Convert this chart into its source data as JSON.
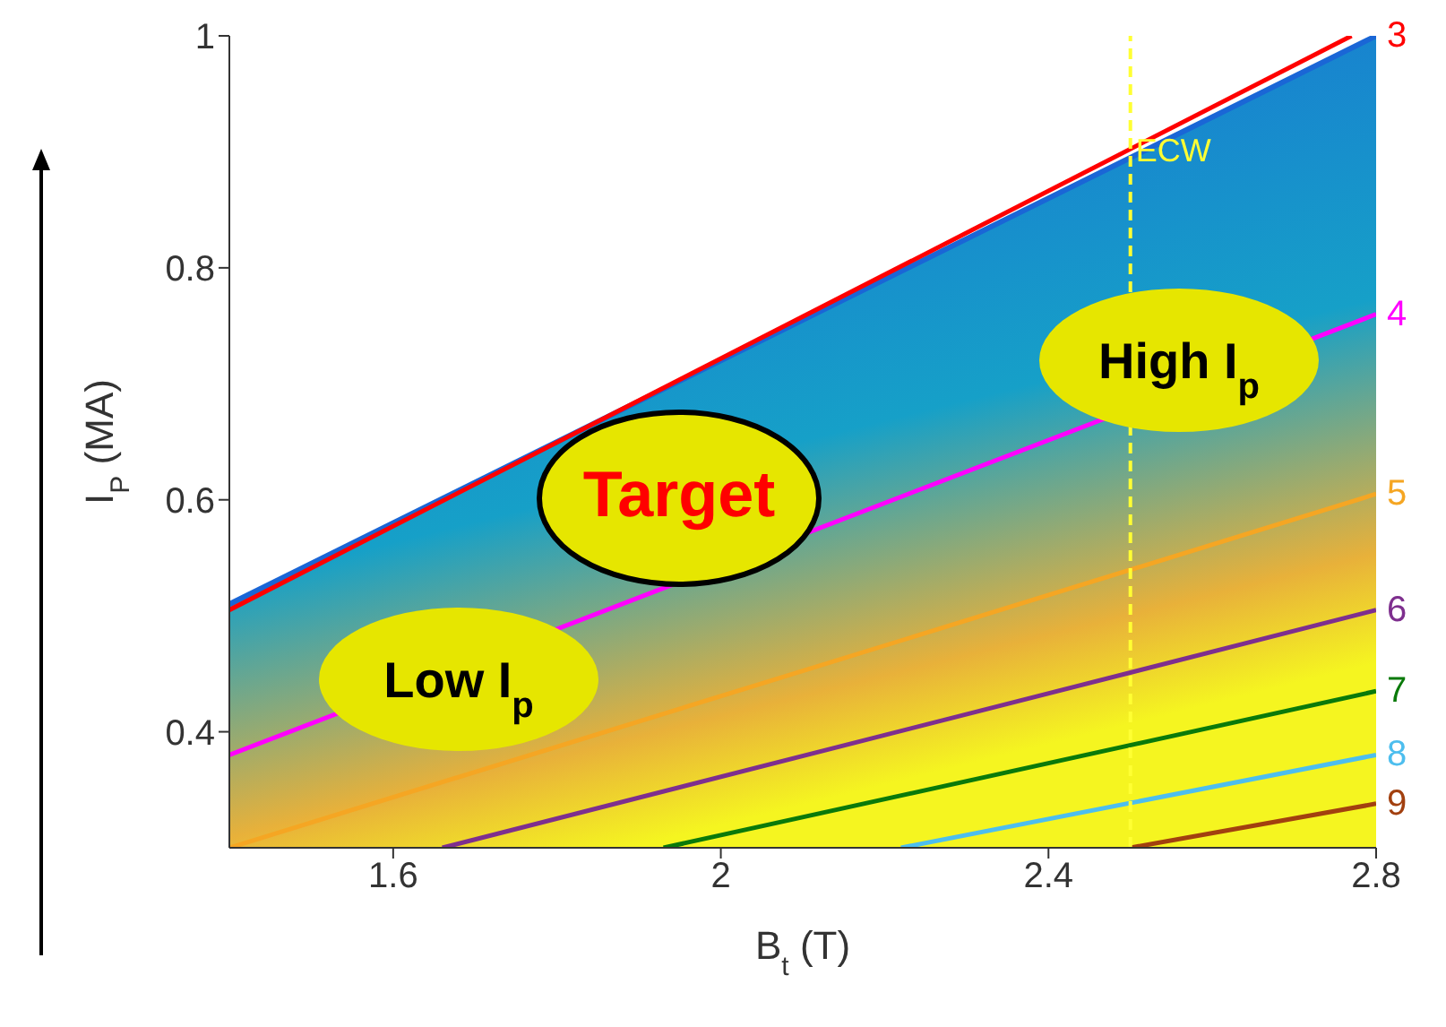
{
  "chart_data": {
    "type": "line",
    "xlabel": "B$_{t}$ (T)",
    "ylabel": "I$_{P}$ (MA)",
    "xlim": [
      1.4,
      2.8
    ],
    "xticks": [
      1.6,
      2,
      2.4,
      2.8
    ],
    "ylim": [
      0.3,
      1
    ],
    "yticks": [
      0.4,
      0.6,
      0.8,
      1
    ],
    "series": [
      {
        "type": "area",
        "color": "#1a66d6",
        "x": [
          1.4,
          2.8
        ],
        "values": [
          0.51,
          1.0
        ]
      },
      {
        "name": "3",
        "color": "#ff0000",
        "x": [
          1.4,
          2.77
        ],
        "values": [
          0.505,
          1.0
        ]
      },
      {
        "name": "4",
        "color": "#ff00ff",
        "x": [
          1.4,
          2.8
        ],
        "values": [
          0.38,
          0.76
        ]
      },
      {
        "name": "5",
        "color": "#f5a623",
        "x": [
          1.4,
          2.8
        ],
        "values": [
          0.3,
          0.605
        ]
      },
      {
        "name": "6",
        "color": "#7e2f8e",
        "x": [
          1.66,
          2.8
        ],
        "values": [
          0.3,
          0.505
        ]
      },
      {
        "name": "7",
        "color": "#0a7a0a",
        "x": [
          1.93,
          2.8
        ],
        "values": [
          0.3,
          0.435
        ]
      },
      {
        "name": "8",
        "color": "#4dbeee",
        "x": [
          2.22,
          2.8
        ],
        "values": [
          0.3,
          0.38
        ]
      },
      {
        "name": "9",
        "color": "#a2400f",
        "x": [
          2.5,
          2.8
        ],
        "values": [
          0.3,
          0.338
        ]
      }
    ],
    "ref_lines": [
      {
        "axis": "x",
        "value": 2.5,
        "label": "ECW",
        "color": "#ffff33",
        "line_style": "dashed"
      }
    ],
    "annotations": [
      "Low I$_{p}$",
      "Target",
      "High I$_{p}$"
    ]
  }
}
